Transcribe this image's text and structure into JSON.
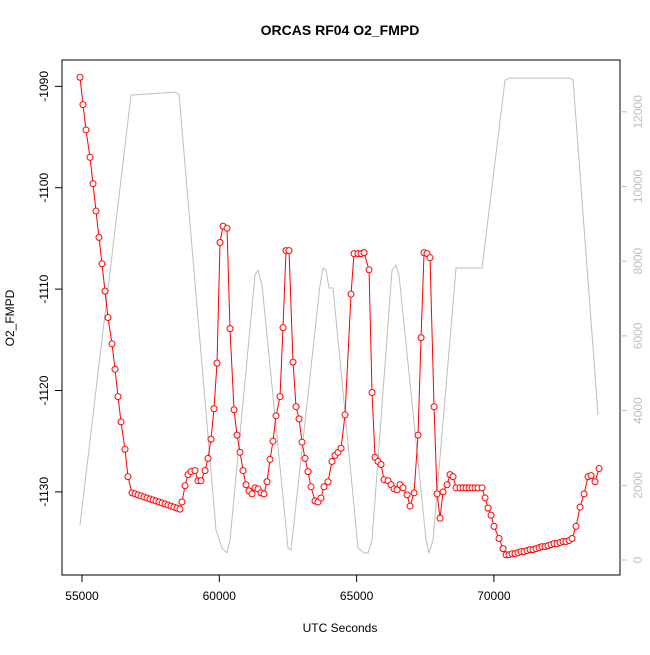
{
  "chart_data": {
    "type": "line",
    "title": "ORCAS RF04 O2_FMPD",
    "xlabel": "UTC Seconds",
    "ylabel": "O2_FMPD",
    "xlim": [
      54272,
      74592
    ],
    "ylim": [
      -1138.2,
      -1087.4
    ],
    "y2lim": [
      -402,
      13387
    ],
    "xticks": [
      55000,
      60000,
      65000,
      70000
    ],
    "yticks": [
      -1090,
      -1100,
      -1110,
      -1120,
      -1130
    ],
    "y2ticks": [
      0,
      2000,
      4000,
      6000,
      8000,
      10000,
      12000
    ],
    "series": [
      {
        "color": "#ff0000",
        "markers": true,
        "x": [
          54927,
          55036,
          55146,
          55291,
          55401,
          55510,
          55619,
          55728,
          55838,
          55947,
          56093,
          56202,
          56311,
          56420,
          56566,
          56675,
          56821,
          56930,
          57040,
          57149,
          57258,
          57367,
          57477,
          57586,
          57695,
          57804,
          57914,
          58023,
          58132,
          58241,
          58351,
          58460,
          58569,
          58642,
          58751,
          58861,
          58970,
          59115,
          59225,
          59334,
          59480,
          59589,
          59698,
          59807,
          59917,
          60026,
          60135,
          60281,
          60390,
          60536,
          60645,
          60754,
          60864,
          60973,
          61082,
          61191,
          61301,
          61410,
          61519,
          61628,
          61738,
          61847,
          61956,
          62065,
          62211,
          62320,
          62430,
          62539,
          62685,
          62794,
          62903,
          63012,
          63122,
          63231,
          63340,
          63486,
          63595,
          63704,
          63814,
          63959,
          64105,
          64214,
          64324,
          64433,
          64579,
          64797,
          64906,
          65052,
          65161,
          65271,
          65453,
          65562,
          65671,
          65780,
          65890,
          65999,
          66145,
          66254,
          66363,
          66472,
          66582,
          66691,
          66837,
          66946,
          67092,
          67237,
          67347,
          67456,
          67565,
          67674,
          67820,
          67929,
          68038,
          68148,
          68293,
          68402,
          68512,
          68621,
          68767,
          68876,
          68985,
          69095,
          69204,
          69313,
          69422,
          69568,
          69677,
          69787,
          69896,
          70005,
          70187,
          70333,
          70442,
          70551,
          70661,
          70770,
          70879,
          70988,
          71098,
          71207,
          71316,
          71425,
          71535,
          71644,
          71753,
          71862,
          71972,
          72081,
          72190,
          72299,
          72409,
          72518,
          72627,
          72736,
          72846,
          72991,
          73137,
          73283,
          73428,
          73538,
          73683,
          73829
        ],
        "values": [
          -1089.1,
          -1091.8,
          -1094.3,
          -1097.0,
          -1099.6,
          -1102.3,
          -1104.9,
          -1107.5,
          -1110.2,
          -1112.8,
          -1115.4,
          -1117.9,
          -1120.6,
          -1123.1,
          -1125.8,
          -1128.5,
          -1130.1,
          -1130.2,
          -1130.3,
          -1130.4,
          -1130.5,
          -1130.6,
          -1130.7,
          -1130.8,
          -1130.9,
          -1131.0,
          -1131.1,
          -1131.2,
          -1131.3,
          -1131.4,
          -1131.5,
          -1131.6,
          -1131.7,
          -1131.0,
          -1129.4,
          -1128.3,
          -1128.0,
          -1127.9,
          -1128.9,
          -1128.9,
          -1127.9,
          -1126.7,
          -1124.8,
          -1121.8,
          -1117.3,
          -1105.4,
          -1103.8,
          -1104.0,
          -1113.9,
          -1121.9,
          -1124.4,
          -1126.1,
          -1127.9,
          -1129.3,
          -1129.9,
          -1130.2,
          -1129.6,
          -1129.7,
          -1130.1,
          -1130.2,
          -1129.0,
          -1126.8,
          -1125.0,
          -1122.5,
          -1120.6,
          -1113.8,
          -1106.2,
          -1106.2,
          -1117.2,
          -1121.6,
          -1122.8,
          -1125.1,
          -1126.7,
          -1128.0,
          -1129.5,
          -1130.9,
          -1131.0,
          -1130.6,
          -1129.5,
          -1129.0,
          -1127.0,
          -1126.4,
          -1126.1,
          -1125.7,
          -1122.4,
          -1110.5,
          -1106.5,
          -1106.5,
          -1106.5,
          -1106.4,
          -1108.1,
          -1120.2,
          -1126.6,
          -1127.0,
          -1127.3,
          -1128.8,
          -1128.9,
          -1129.3,
          -1129.7,
          -1129.8,
          -1129.3,
          -1129.6,
          -1130.3,
          -1131.4,
          -1130.1,
          -1124.4,
          -1114.8,
          -1106.4,
          -1106.5,
          -1106.9,
          -1121.6,
          -1130.2,
          -1132.6,
          -1130.0,
          -1129.3,
          -1128.3,
          -1128.5,
          -1129.6,
          -1129.6,
          -1129.6,
          -1129.6,
          -1129.6,
          -1129.6,
          -1129.6,
          -1129.6,
          -1129.6,
          -1130.6,
          -1131.6,
          -1132.3,
          -1133.4,
          -1134.6,
          -1135.6,
          -1136.2,
          -1136.2,
          -1136.1,
          -1136.1,
          -1136.0,
          -1135.9,
          -1135.9,
          -1135.8,
          -1135.7,
          -1135.7,
          -1135.6,
          -1135.5,
          -1135.4,
          -1135.4,
          -1135.3,
          -1135.2,
          -1135.1,
          -1135.1,
          -1135.0,
          -1134.9,
          -1134.9,
          -1134.8,
          -1134.6,
          -1133.4,
          -1131.5,
          -1130.2,
          -1128.5,
          -1128.4,
          -1129.0,
          -1127.7
        ]
      },
      {
        "color": "#bebebe",
        "axis": "y2",
        "markers": false,
        "x": [
          54927,
          56785,
          58387,
          58533,
          59880,
          60099,
          60281,
          60390,
          61301,
          61410,
          61556,
          62503,
          62612,
          63668,
          63777,
          63887,
          63996,
          64142,
          65052,
          65271,
          65416,
          65562,
          66290,
          66436,
          66545,
          67529,
          67638,
          67784,
          68621,
          69568,
          70406,
          70588,
          72773,
          72882,
          73793
        ],
        "values": [
          937,
          12448,
          12528,
          12475,
          803,
          321,
          187,
          535,
          7629,
          7763,
          7362,
          321,
          268,
          7362,
          7817,
          7763,
          7281,
          7281,
          321,
          187,
          187,
          535,
          7763,
          7897,
          7629,
          535,
          187,
          535,
          7817,
          7817,
          12850,
          12903,
          12903,
          12850,
          3882
        ]
      }
    ]
  }
}
